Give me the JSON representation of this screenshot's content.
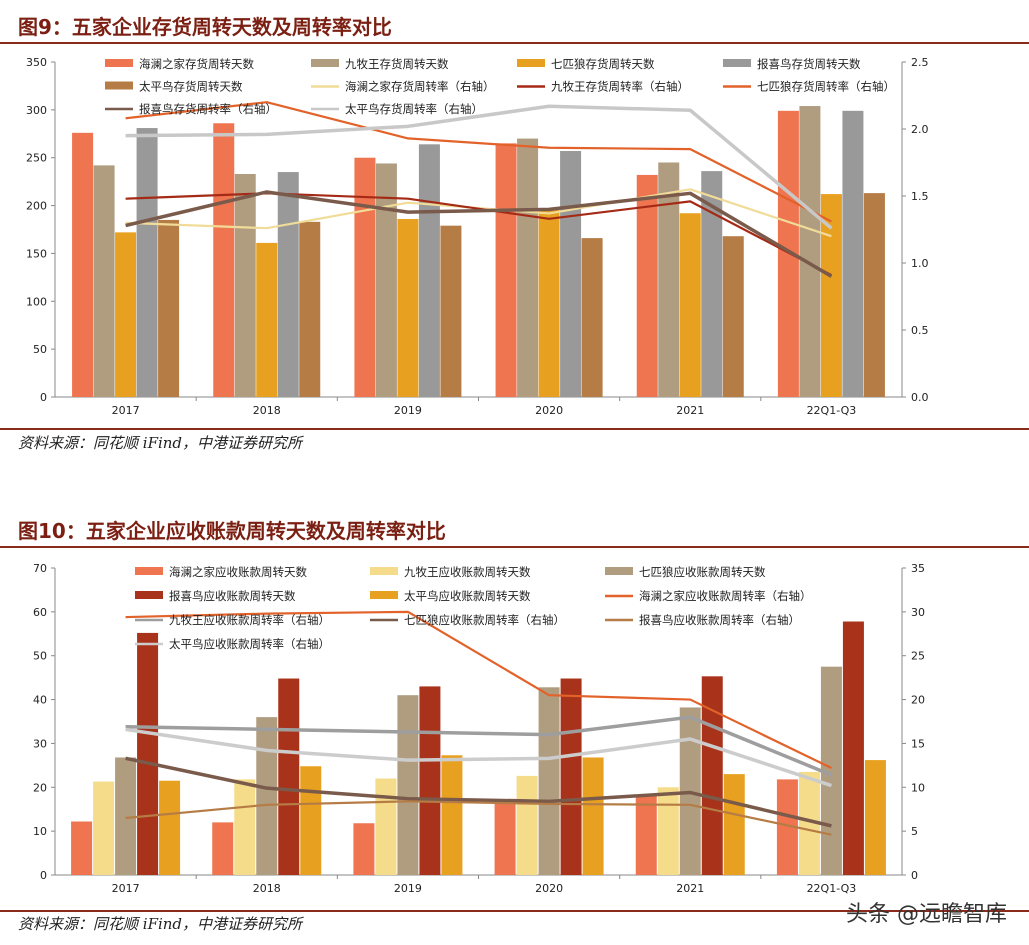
{
  "figures": [
    {
      "title": "图9：五家企业存货周转天数及周转率对比",
      "source": "资料来源：同花顺 iFind，中港证券研究所"
    },
    {
      "title": "图10：五家企业应收账款周转天数及周转率对比",
      "source": "资料来源：同花顺 iFind，中港证券研究所"
    }
  ],
  "watermark": "头条 @远瞻智库",
  "chart_data": [
    {
      "type": "bar",
      "title": "图9：五家企业存货周转天数及周转率对比",
      "categories": [
        "2017",
        "2018",
        "2019",
        "2020",
        "2021",
        "22Q1-Q3"
      ],
      "ylim": [
        0,
        350
      ],
      "yticks": [
        "0",
        "50",
        "100",
        "150",
        "200",
        "250",
        "300",
        "350"
      ],
      "y2lim": [
        0,
        2.5
      ],
      "y2ticks": [
        "0.0",
        "0.5",
        "1.0",
        "1.5",
        "2.0",
        "2.5"
      ],
      "bar_series": [
        {
          "name": "海澜之家存货周转天数",
          "color": "#ef7450",
          "values": [
            276,
            286,
            250,
            265,
            232,
            299
          ]
        },
        {
          "name": "九牧王存货周转天数",
          "color": "#b09d80",
          "values": [
            242,
            233,
            244,
            270,
            245,
            304
          ]
        },
        {
          "name": "七匹狼存货周转天数",
          "color": "#e8a020",
          "values": [
            172,
            161,
            186,
            196,
            192,
            212
          ]
        },
        {
          "name": "报喜鸟存货周转天数",
          "color": "#999999",
          "values": [
            281,
            235,
            264,
            257,
            236,
            299
          ]
        },
        {
          "name": "太平鸟存货周转天数",
          "color": "#b57c45",
          "values": [
            185,
            183,
            179,
            166,
            168,
            213
          ]
        }
      ],
      "line_series": [
        {
          "name": "海澜之家存货周转率（右轴）",
          "color": "#f0dc98",
          "values": [
            1.3,
            1.26,
            1.45,
            1.37,
            1.55,
            1.2
          ]
        },
        {
          "name": "九牧王存货周转率（右轴）",
          "color": "#a52a16",
          "values": [
            1.48,
            1.52,
            1.48,
            1.33,
            1.46,
            0.91
          ]
        },
        {
          "name": "七匹狼存货周转率（右轴）",
          "color": "#e2622a",
          "values": [
            2.08,
            2.2,
            1.93,
            1.86,
            1.85,
            1.31
          ]
        },
        {
          "name": "报喜鸟存货周转率（右轴）",
          "color": "#7a5a4a",
          "values": [
            1.28,
            1.53,
            1.38,
            1.4,
            1.52,
            0.9
          ]
        },
        {
          "name": "太平鸟存货周转率（右轴）",
          "color": "#c8c8c8",
          "values": [
            1.95,
            1.96,
            2.02,
            2.17,
            2.14,
            1.26
          ]
        }
      ]
    },
    {
      "type": "bar",
      "title": "图10：五家企业应收账款周转天数及周转率对比",
      "categories": [
        "2017",
        "2018",
        "2019",
        "2020",
        "2021",
        "22Q1-Q3"
      ],
      "ylim": [
        0,
        70
      ],
      "yticks": [
        "0",
        "10",
        "20",
        "30",
        "40",
        "50",
        "60",
        "70"
      ],
      "y2lim": [
        0,
        35
      ],
      "y2ticks": [
        "0",
        "5",
        "10",
        "15",
        "20",
        "25",
        "30",
        "35"
      ],
      "bar_series": [
        {
          "name": "海澜之家应收账款周转天数",
          "color": "#ef7450",
          "values": [
            12.2,
            12.0,
            11.8,
            16.8,
            18.0,
            21.8
          ]
        },
        {
          "name": "九牧王应收账款周转天数",
          "color": "#f5dc8a",
          "values": [
            21.3,
            21.8,
            22.0,
            22.6,
            20.0,
            23.5
          ]
        },
        {
          "name": "七匹狼应收账款周转天数",
          "color": "#b09d80",
          "values": [
            26.8,
            36.0,
            41.0,
            42.8,
            38.2,
            47.5
          ]
        },
        {
          "name": "报喜鸟应收账款周转天数",
          "color": "#a8321a",
          "values": [
            55.2,
            44.8,
            43.0,
            44.8,
            45.3,
            57.8
          ]
        },
        {
          "name": "太平鸟应收账款周转天数",
          "color": "#e8a020",
          "values": [
            21.5,
            24.8,
            27.3,
            26.8,
            23.0,
            26.2
          ]
        }
      ],
      "line_series": [
        {
          "name": "海澜之家应收账款周转率（右轴）",
          "color": "#e2622a",
          "values": [
            29.4,
            29.8,
            30.0,
            20.5,
            20.0,
            12.2
          ]
        },
        {
          "name": "九牧王应收账款周转率（右轴）",
          "color": "#9e9e9e",
          "values": [
            16.9,
            16.6,
            16.3,
            16.0,
            18.0,
            11.4
          ]
        },
        {
          "name": "七匹狼应收账款周转率（右轴）",
          "color": "#7a5a4a",
          "values": [
            13.3,
            9.9,
            8.7,
            8.4,
            9.4,
            5.6
          ]
        },
        {
          "name": "报喜鸟应收账款周转率（右轴）",
          "color": "#b57c45",
          "values": [
            6.5,
            8.0,
            8.4,
            8.1,
            8.0,
            4.6
          ]
        },
        {
          "name": "太平鸟应收账款周转率（右轴）",
          "color": "#cccccc",
          "values": [
            16.6,
            14.2,
            13.1,
            13.3,
            15.5,
            10.2
          ]
        }
      ]
    }
  ]
}
